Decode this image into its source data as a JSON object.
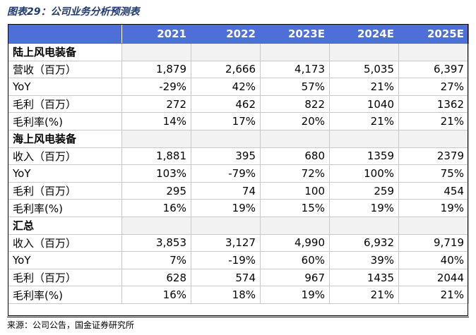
{
  "caption": "图表29：公司业务分析预测表",
  "columns": [
    "2021",
    "2022",
    "2023E",
    "2024E",
    "2025E"
  ],
  "sections": [
    {
      "title": "陆上风电装备",
      "rows": [
        {
          "label": "营收（百万）",
          "values": [
            "1,879",
            "2,666",
            "4,173",
            "5,035",
            "6,397"
          ]
        },
        {
          "label": "YoY",
          "values": [
            "-29%",
            "42%",
            "57%",
            "21%",
            "27%"
          ]
        },
        {
          "label": "毛利（百万）",
          "values": [
            "272",
            "462",
            "822",
            "1040",
            "1362"
          ]
        },
        {
          "label": "毛利率(%)",
          "values": [
            "14%",
            "17%",
            "20%",
            "21%",
            "21%"
          ]
        }
      ]
    },
    {
      "title": "海上风电装备",
      "rows": [
        {
          "label": "收入（百万）",
          "values": [
            "1,881",
            "395",
            "680",
            "1359",
            "2379"
          ]
        },
        {
          "label": "YoY",
          "values": [
            "103%",
            "-79%",
            "72%",
            "100%",
            "75%"
          ]
        },
        {
          "label": "毛利（百万）",
          "values": [
            "295",
            "74",
            "100",
            "259",
            "454"
          ]
        },
        {
          "label": "毛利率(%)",
          "values": [
            "16%",
            "19%",
            "15%",
            "19%",
            "19%"
          ]
        }
      ]
    },
    {
      "title": "汇总",
      "rows": [
        {
          "label": "收入（百万）",
          "values": [
            "3,853",
            "3,127",
            "4,990",
            "6,932",
            "9,719"
          ]
        },
        {
          "label": "YoY",
          "values": [
            "7%",
            "-19%",
            "60%",
            "39%",
            "40%"
          ]
        },
        {
          "label": "毛利（百万）",
          "values": [
            "628",
            "574",
            "967",
            "1435",
            "2044"
          ]
        },
        {
          "label": "毛利率(%)",
          "values": [
            "16%",
            "18%",
            "19%",
            "21%",
            "21%"
          ]
        }
      ]
    }
  ],
  "source": "来源：公司公告，国金证券研究所"
}
